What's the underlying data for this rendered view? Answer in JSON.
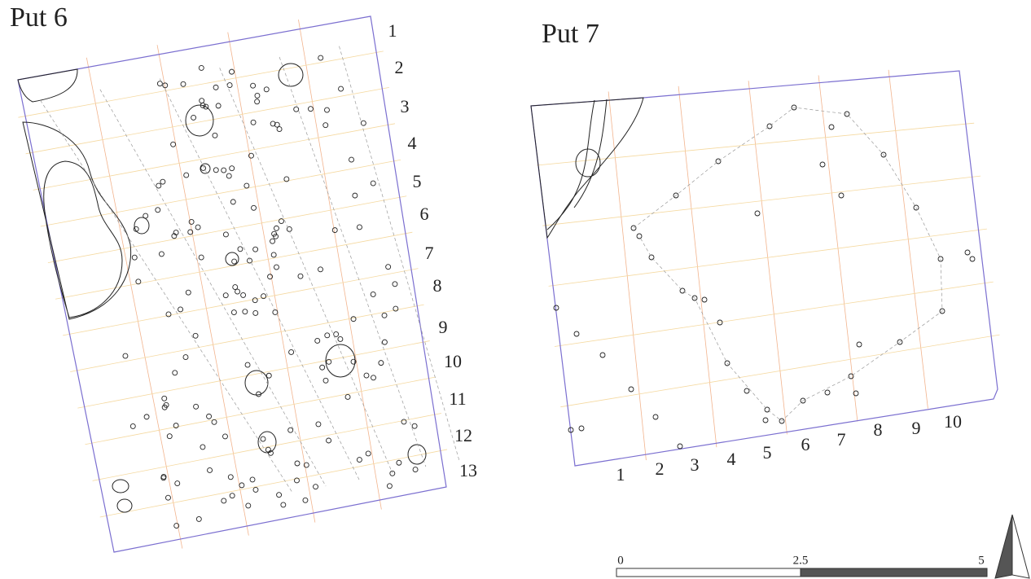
{
  "put6": {
    "title": "Put 6",
    "rows": [
      "1",
      "2",
      "3",
      "4",
      "5",
      "6",
      "7",
      "8",
      "9",
      "10",
      "11",
      "12",
      "13"
    ]
  },
  "put7": {
    "title": "Put 7",
    "columns": [
      "1",
      "2",
      "3",
      "4",
      "5",
      "6",
      "7",
      "8",
      "9",
      "10"
    ]
  },
  "scale_bar": {
    "labels": [
      "0",
      "2.5",
      "5"
    ]
  }
}
